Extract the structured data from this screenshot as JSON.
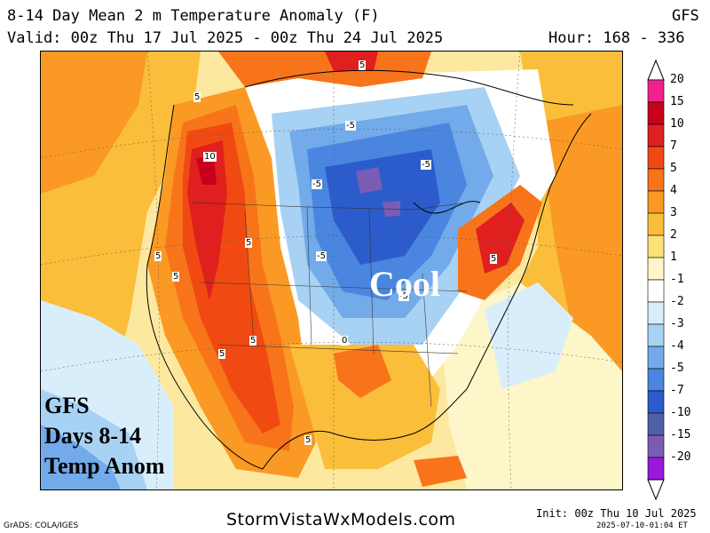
{
  "header": {
    "title": "8-14 Day Mean 2 m Temperature Anomaly (F)",
    "model": "GFS",
    "valid": "Valid: 00z Thu 17 Jul 2025 - 00z Thu 24 Jul 2025",
    "hours": "Hour: 168 - 336"
  },
  "map": {
    "region_label": "Cool",
    "contour_labels": [
      {
        "id": "ne-5",
        "text": "5"
      },
      {
        "id": "nw-5",
        "text": "5"
      },
      {
        "id": "nw-10",
        "text": "10"
      },
      {
        "id": "c-neg5a",
        "text": "-5"
      },
      {
        "id": "c-neg5b",
        "text": "-5"
      },
      {
        "id": "c-neg5c",
        "text": "-5"
      },
      {
        "id": "c-neg5d",
        "text": "-5"
      },
      {
        "id": "c-neg5e",
        "text": "-5"
      },
      {
        "id": "w-5a",
        "text": "5"
      },
      {
        "id": "w-5b",
        "text": "5"
      },
      {
        "id": "w-5c",
        "text": "5"
      },
      {
        "id": "w-5d",
        "text": "5"
      },
      {
        "id": "sw-5",
        "text": "5"
      },
      {
        "id": "s-5",
        "text": "5"
      },
      {
        "id": "e-5",
        "text": "5"
      },
      {
        "id": "c-0",
        "text": "0"
      }
    ]
  },
  "overlay_text": {
    "line1": "GFS",
    "line2": "Days 8-14",
    "line3": "Temp Anom"
  },
  "colorbar": {
    "levels": [
      "20",
      "15",
      "10",
      "7",
      "5",
      "4",
      "3",
      "2",
      "1",
      "-1",
      "-2",
      "-3",
      "-4",
      "-5",
      "-7",
      "-10",
      "-15",
      "-20"
    ],
    "colors": [
      "#f0208c",
      "#c8001e",
      "#e0201e",
      "#f04a12",
      "#f8741a",
      "#fa9a24",
      "#fbbe3a",
      "#fde27a",
      "#fdf6c8",
      "#ffffff",
      "#d8eefb",
      "#a8d2f4",
      "#72aaea",
      "#4a86e0",
      "#2c5ccc",
      "#5060a8",
      "#7a5cb4",
      "#9a18dc"
    ]
  },
  "footer": {
    "url": "StormVistaWxModels.com",
    "grads": "GrADS: COLA/IGES",
    "init": "Init: 00z Thu 10 Jul 2025",
    "stamp": "2025-07-10-01:04 ET"
  }
}
